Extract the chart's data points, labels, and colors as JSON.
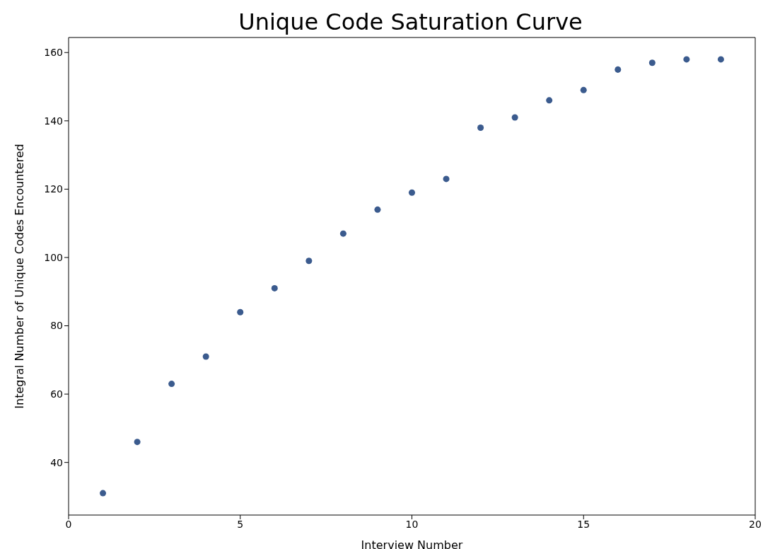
{
  "chart_data": {
    "type": "scatter",
    "title": "Unique Code Saturation Curve",
    "xlabel": "Interview Number",
    "ylabel": "Integral Number of Unique Codes Encountered",
    "x": [
      1,
      2,
      3,
      4,
      5,
      6,
      7,
      8,
      9,
      10,
      11,
      12,
      13,
      14,
      15,
      16,
      17,
      18,
      19
    ],
    "series": [
      {
        "color": "#3b5b8e",
        "values": [
          31,
          46,
          63,
          71,
          84,
          91,
          99,
          107,
          114,
          119,
          123,
          138,
          141,
          146,
          149,
          155,
          157,
          158,
          158
        ]
      }
    ],
    "xlim": [
      0,
      20
    ],
    "xticks": [
      0,
      5,
      10,
      15,
      20
    ],
    "ylim": [
      24.6,
      164.4
    ],
    "yticks": [
      40,
      60,
      80,
      100,
      120,
      140,
      160
    ],
    "grid": false,
    "marker": "circle"
  }
}
